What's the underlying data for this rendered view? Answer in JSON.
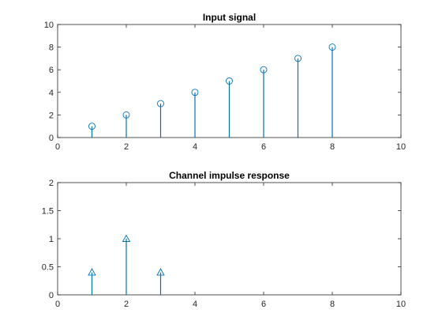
{
  "chart_data": [
    {
      "type": "stem",
      "title": "Input signal",
      "xlabel": "",
      "ylabel": "",
      "xlim": [
        0,
        10
      ],
      "ylim": [
        0,
        10
      ],
      "xticks": [
        0,
        2,
        4,
        6,
        8,
        10
      ],
      "yticks": [
        0,
        2,
        4,
        6,
        8,
        10
      ],
      "marker": "circle",
      "color": "#0072BD",
      "x": [
        1,
        2,
        3,
        4,
        5,
        6,
        7,
        8
      ],
      "y": [
        1,
        2,
        3,
        4,
        5,
        6,
        7,
        8
      ]
    },
    {
      "type": "stem",
      "title": "Channel impulse response",
      "xlabel": "",
      "ylabel": "",
      "xlim": [
        0,
        10
      ],
      "ylim": [
        0,
        2
      ],
      "xticks": [
        0,
        2,
        4,
        6,
        8,
        10
      ],
      "yticks": [
        0,
        0.5,
        1,
        1.5,
        2
      ],
      "marker": "triangle",
      "color": "#0072BD",
      "x": [
        1,
        2,
        3
      ],
      "y": [
        0.4,
        1,
        0.4
      ]
    }
  ]
}
